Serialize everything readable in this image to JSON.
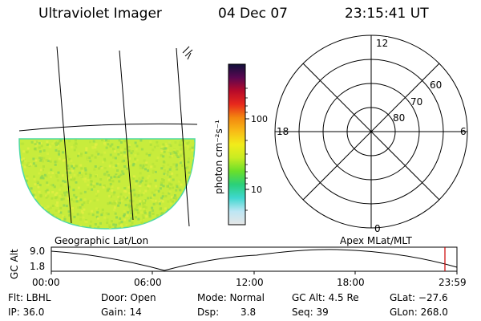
{
  "header": {
    "title": "Ultraviolet Imager",
    "date": "04 Dec 07",
    "time": "23:15:41 UT"
  },
  "geo_panel": {
    "label": "Geographic Lat/Lon",
    "colors": {
      "fill": "#c8ec3c",
      "edge": "#4fd9a6"
    }
  },
  "colorbar": {
    "unit_label": "photon cm⁻²s⁻¹",
    "ticks": [
      "100",
      "10"
    ],
    "stops": [
      "#e6e6e6",
      "#bde6f4",
      "#3fd7cf",
      "#2ad07a",
      "#6adf2a",
      "#c8ec22",
      "#f2ec1a",
      "#f8bb16",
      "#f3870f",
      "#e8291c",
      "#b80a2a",
      "#5a0750",
      "#10103a"
    ]
  },
  "polar_panel": {
    "label": "Apex MLat/MLT",
    "mlt_labels": {
      "top": "12",
      "left": "18",
      "right": "6",
      "bottom": "0"
    },
    "lat_labels": [
      "60",
      "70",
      "80"
    ]
  },
  "altitude_plot": {
    "ylabel": "GC Alt",
    "yticks": [
      "9.0",
      "1.8"
    ],
    "xticks": [
      "00:00",
      "06:00",
      "12:00",
      "18:00",
      "23:59"
    ],
    "marker_color": "#cc0000"
  },
  "status": {
    "filter": "Flt: LBHL",
    "ip": "IP: 36.0",
    "door": "Door: Open",
    "gain": "Gain: 14",
    "mode": "Mode: Normal",
    "dsp_label": "Dsp:",
    "dsp_value": "3.8",
    "gc_alt": "GC Alt: 4.5 Re",
    "seq": "Seq: 39",
    "glat": "GLat: −27.6",
    "glon": "GLon: 268.0"
  }
}
